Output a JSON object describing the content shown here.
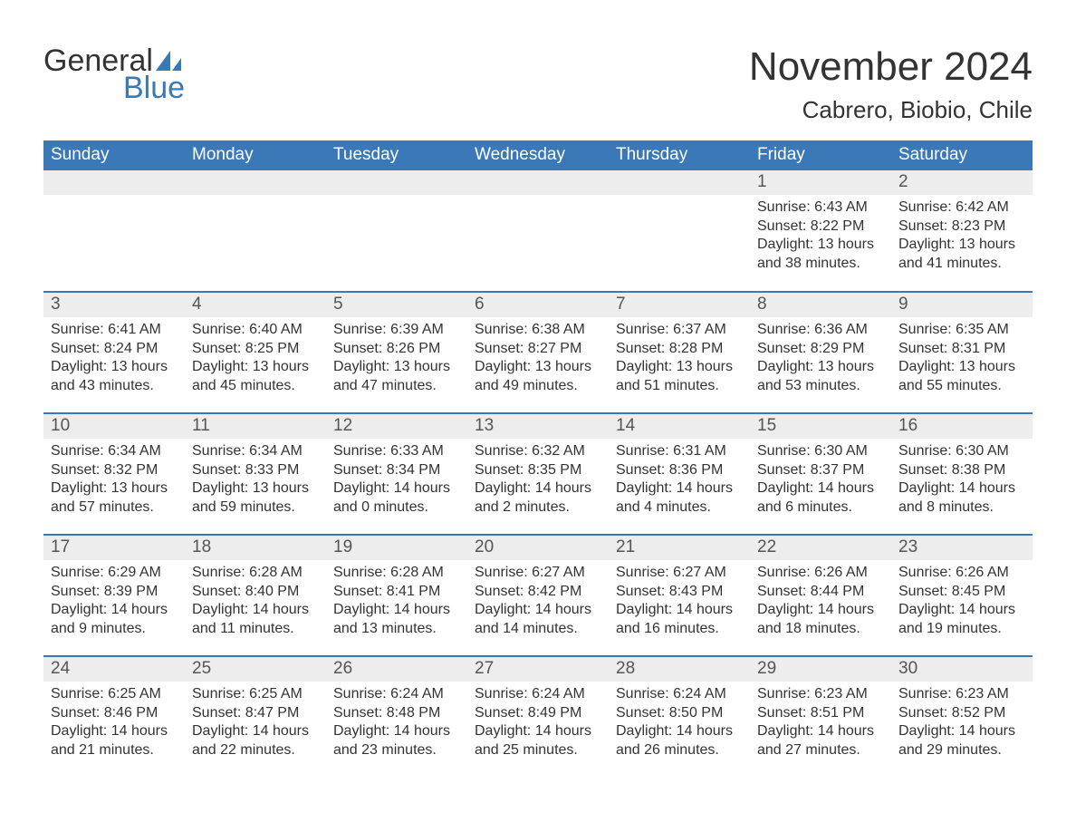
{
  "brand": {
    "word1": "General",
    "word2": "Blue"
  },
  "title": "November 2024",
  "location": "Cabrero, Biobio, Chile",
  "colors": {
    "header_bg": "#3b78b8",
    "header_text": "#ffffff",
    "daynum_bg": "#ededed",
    "text": "#333333",
    "brand_blue": "#3b78b8"
  },
  "weekdays": [
    "Sunday",
    "Monday",
    "Tuesday",
    "Wednesday",
    "Thursday",
    "Friday",
    "Saturday"
  ],
  "weeks": [
    [
      null,
      null,
      null,
      null,
      null,
      {
        "n": "1",
        "sr": "Sunrise: 6:43 AM",
        "ss": "Sunset: 8:22 PM",
        "dl": "Daylight: 13 hours and 38 minutes."
      },
      {
        "n": "2",
        "sr": "Sunrise: 6:42 AM",
        "ss": "Sunset: 8:23 PM",
        "dl": "Daylight: 13 hours and 41 minutes."
      }
    ],
    [
      {
        "n": "3",
        "sr": "Sunrise: 6:41 AM",
        "ss": "Sunset: 8:24 PM",
        "dl": "Daylight: 13 hours and 43 minutes."
      },
      {
        "n": "4",
        "sr": "Sunrise: 6:40 AM",
        "ss": "Sunset: 8:25 PM",
        "dl": "Daylight: 13 hours and 45 minutes."
      },
      {
        "n": "5",
        "sr": "Sunrise: 6:39 AM",
        "ss": "Sunset: 8:26 PM",
        "dl": "Daylight: 13 hours and 47 minutes."
      },
      {
        "n": "6",
        "sr": "Sunrise: 6:38 AM",
        "ss": "Sunset: 8:27 PM",
        "dl": "Daylight: 13 hours and 49 minutes."
      },
      {
        "n": "7",
        "sr": "Sunrise: 6:37 AM",
        "ss": "Sunset: 8:28 PM",
        "dl": "Daylight: 13 hours and 51 minutes."
      },
      {
        "n": "8",
        "sr": "Sunrise: 6:36 AM",
        "ss": "Sunset: 8:29 PM",
        "dl": "Daylight: 13 hours and 53 minutes."
      },
      {
        "n": "9",
        "sr": "Sunrise: 6:35 AM",
        "ss": "Sunset: 8:31 PM",
        "dl": "Daylight: 13 hours and 55 minutes."
      }
    ],
    [
      {
        "n": "10",
        "sr": "Sunrise: 6:34 AM",
        "ss": "Sunset: 8:32 PM",
        "dl": "Daylight: 13 hours and 57 minutes."
      },
      {
        "n": "11",
        "sr": "Sunrise: 6:34 AM",
        "ss": "Sunset: 8:33 PM",
        "dl": "Daylight: 13 hours and 59 minutes."
      },
      {
        "n": "12",
        "sr": "Sunrise: 6:33 AM",
        "ss": "Sunset: 8:34 PM",
        "dl": "Daylight: 14 hours and 0 minutes."
      },
      {
        "n": "13",
        "sr": "Sunrise: 6:32 AM",
        "ss": "Sunset: 8:35 PM",
        "dl": "Daylight: 14 hours and 2 minutes."
      },
      {
        "n": "14",
        "sr": "Sunrise: 6:31 AM",
        "ss": "Sunset: 8:36 PM",
        "dl": "Daylight: 14 hours and 4 minutes."
      },
      {
        "n": "15",
        "sr": "Sunrise: 6:30 AM",
        "ss": "Sunset: 8:37 PM",
        "dl": "Daylight: 14 hours and 6 minutes."
      },
      {
        "n": "16",
        "sr": "Sunrise: 6:30 AM",
        "ss": "Sunset: 8:38 PM",
        "dl": "Daylight: 14 hours and 8 minutes."
      }
    ],
    [
      {
        "n": "17",
        "sr": "Sunrise: 6:29 AM",
        "ss": "Sunset: 8:39 PM",
        "dl": "Daylight: 14 hours and 9 minutes."
      },
      {
        "n": "18",
        "sr": "Sunrise: 6:28 AM",
        "ss": "Sunset: 8:40 PM",
        "dl": "Daylight: 14 hours and 11 minutes."
      },
      {
        "n": "19",
        "sr": "Sunrise: 6:28 AM",
        "ss": "Sunset: 8:41 PM",
        "dl": "Daylight: 14 hours and 13 minutes."
      },
      {
        "n": "20",
        "sr": "Sunrise: 6:27 AM",
        "ss": "Sunset: 8:42 PM",
        "dl": "Daylight: 14 hours and 14 minutes."
      },
      {
        "n": "21",
        "sr": "Sunrise: 6:27 AM",
        "ss": "Sunset: 8:43 PM",
        "dl": "Daylight: 14 hours and 16 minutes."
      },
      {
        "n": "22",
        "sr": "Sunrise: 6:26 AM",
        "ss": "Sunset: 8:44 PM",
        "dl": "Daylight: 14 hours and 18 minutes."
      },
      {
        "n": "23",
        "sr": "Sunrise: 6:26 AM",
        "ss": "Sunset: 8:45 PM",
        "dl": "Daylight: 14 hours and 19 minutes."
      }
    ],
    [
      {
        "n": "24",
        "sr": "Sunrise: 6:25 AM",
        "ss": "Sunset: 8:46 PM",
        "dl": "Daylight: 14 hours and 21 minutes."
      },
      {
        "n": "25",
        "sr": "Sunrise: 6:25 AM",
        "ss": "Sunset: 8:47 PM",
        "dl": "Daylight: 14 hours and 22 minutes."
      },
      {
        "n": "26",
        "sr": "Sunrise: 6:24 AM",
        "ss": "Sunset: 8:48 PM",
        "dl": "Daylight: 14 hours and 23 minutes."
      },
      {
        "n": "27",
        "sr": "Sunrise: 6:24 AM",
        "ss": "Sunset: 8:49 PM",
        "dl": "Daylight: 14 hours and 25 minutes."
      },
      {
        "n": "28",
        "sr": "Sunrise: 6:24 AM",
        "ss": "Sunset: 8:50 PM",
        "dl": "Daylight: 14 hours and 26 minutes."
      },
      {
        "n": "29",
        "sr": "Sunrise: 6:23 AM",
        "ss": "Sunset: 8:51 PM",
        "dl": "Daylight: 14 hours and 27 minutes."
      },
      {
        "n": "30",
        "sr": "Sunrise: 6:23 AM",
        "ss": "Sunset: 8:52 PM",
        "dl": "Daylight: 14 hours and 29 minutes."
      }
    ]
  ]
}
